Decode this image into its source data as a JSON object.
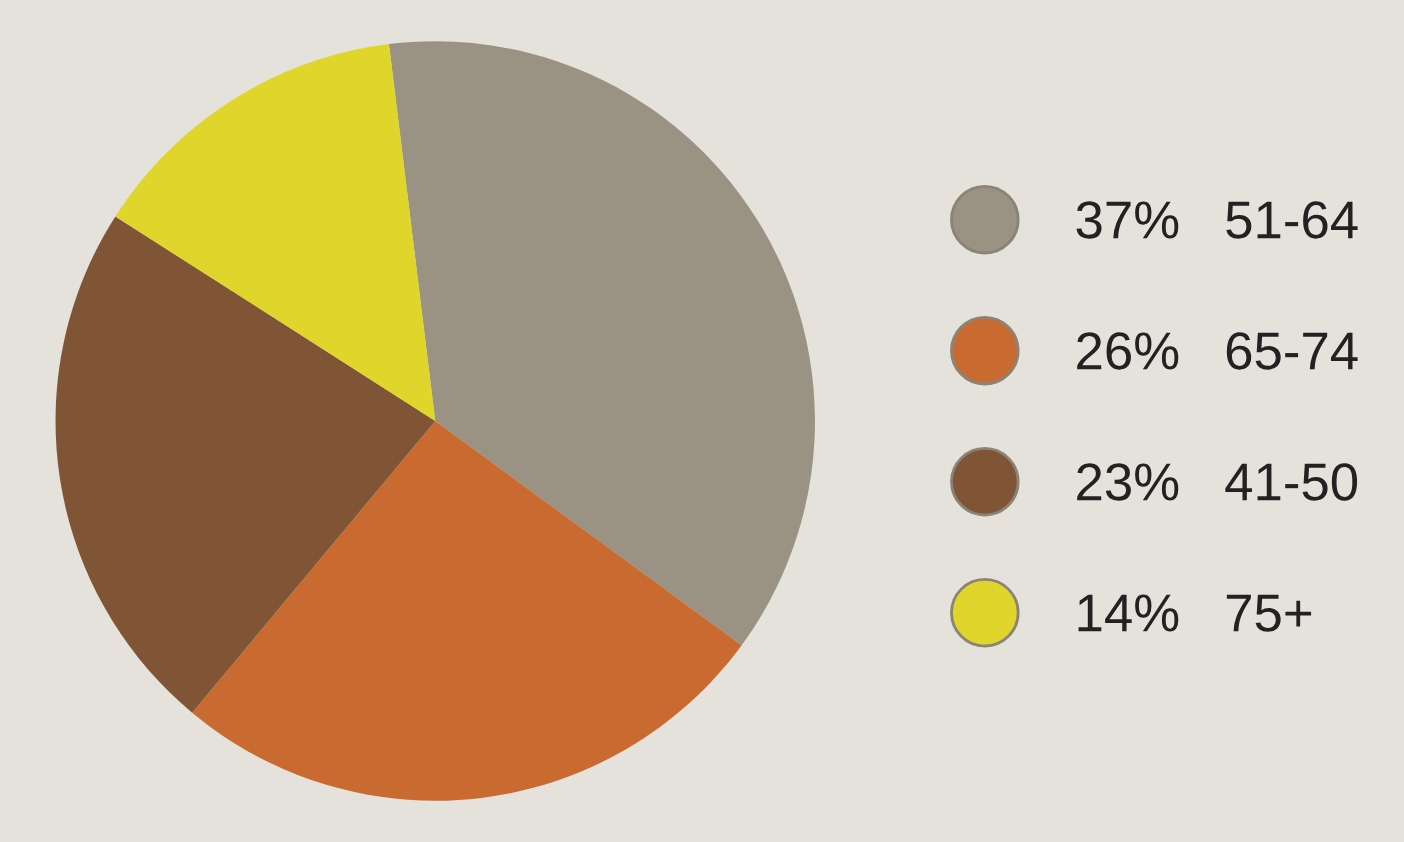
{
  "chart_data": {
    "type": "pie",
    "categories": [
      "51-64",
      "65-74",
      "41-50",
      "75+"
    ],
    "values": [
      37,
      26,
      23,
      14
    ],
    "value_labels": [
      "37%",
      "26%",
      "23%",
      "14%"
    ],
    "colors": [
      "#9a9282",
      "#c96a30",
      "#7f5535",
      "#e0d52a"
    ],
    "legend": "right"
  }
}
